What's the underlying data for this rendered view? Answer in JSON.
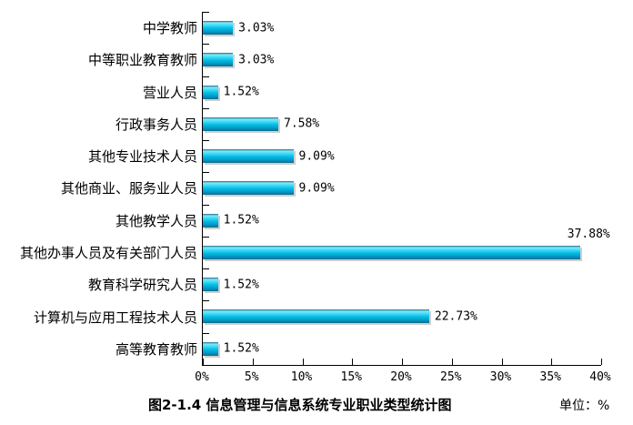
{
  "figure": {
    "caption": "图2-1.4 信息管理与信息系统专业职业类型统计图",
    "unit_label": "单位：%"
  },
  "chart_data": {
    "type": "bar",
    "orientation": "horizontal",
    "title": "图2-1.4 信息管理与信息系统专业职业类型统计图",
    "unit": "%",
    "categories": [
      "中学教师",
      "中等职业教育教师",
      "营业人员",
      "行政事务人员",
      "其他专业技术人员",
      "其他商业、服务业人员",
      "其他教学人员",
      "其他办事人员及有关部门人员",
      "教育科学研究人员",
      "计算机与应用工程技术人员",
      "高等教育教师"
    ],
    "values": [
      3.03,
      3.03,
      1.52,
      7.58,
      9.09,
      9.09,
      1.52,
      37.88,
      1.52,
      22.73,
      1.52
    ],
    "value_labels": [
      "3.03%",
      "3.03%",
      "1.52%",
      "7.58%",
      "9.09%",
      "9.09%",
      "1.52%",
      "37.88%",
      "1.52%",
      "22.73%",
      "1.52%"
    ],
    "label_above_indices": [
      7
    ],
    "xlabel": "",
    "ylabel": "",
    "xlim": [
      0,
      40
    ],
    "x_ticks": [
      "0%",
      "5%",
      "10%",
      "15%",
      "20%",
      "25%",
      "30%",
      "35%",
      "40%"
    ],
    "x_tick_values": [
      0,
      5,
      10,
      15,
      20,
      25,
      30,
      35,
      40
    ],
    "grid": false,
    "legend": "none",
    "bar_gradient": [
      "#256E88",
      "#7EE9FB",
      "#40D9F4",
      "#00BCE4",
      "#009FCB",
      "#0F6E90"
    ],
    "bar_shadow_color": "#cfcfcf",
    "axis_color": "#000000",
    "background_color": "#ffffff"
  }
}
